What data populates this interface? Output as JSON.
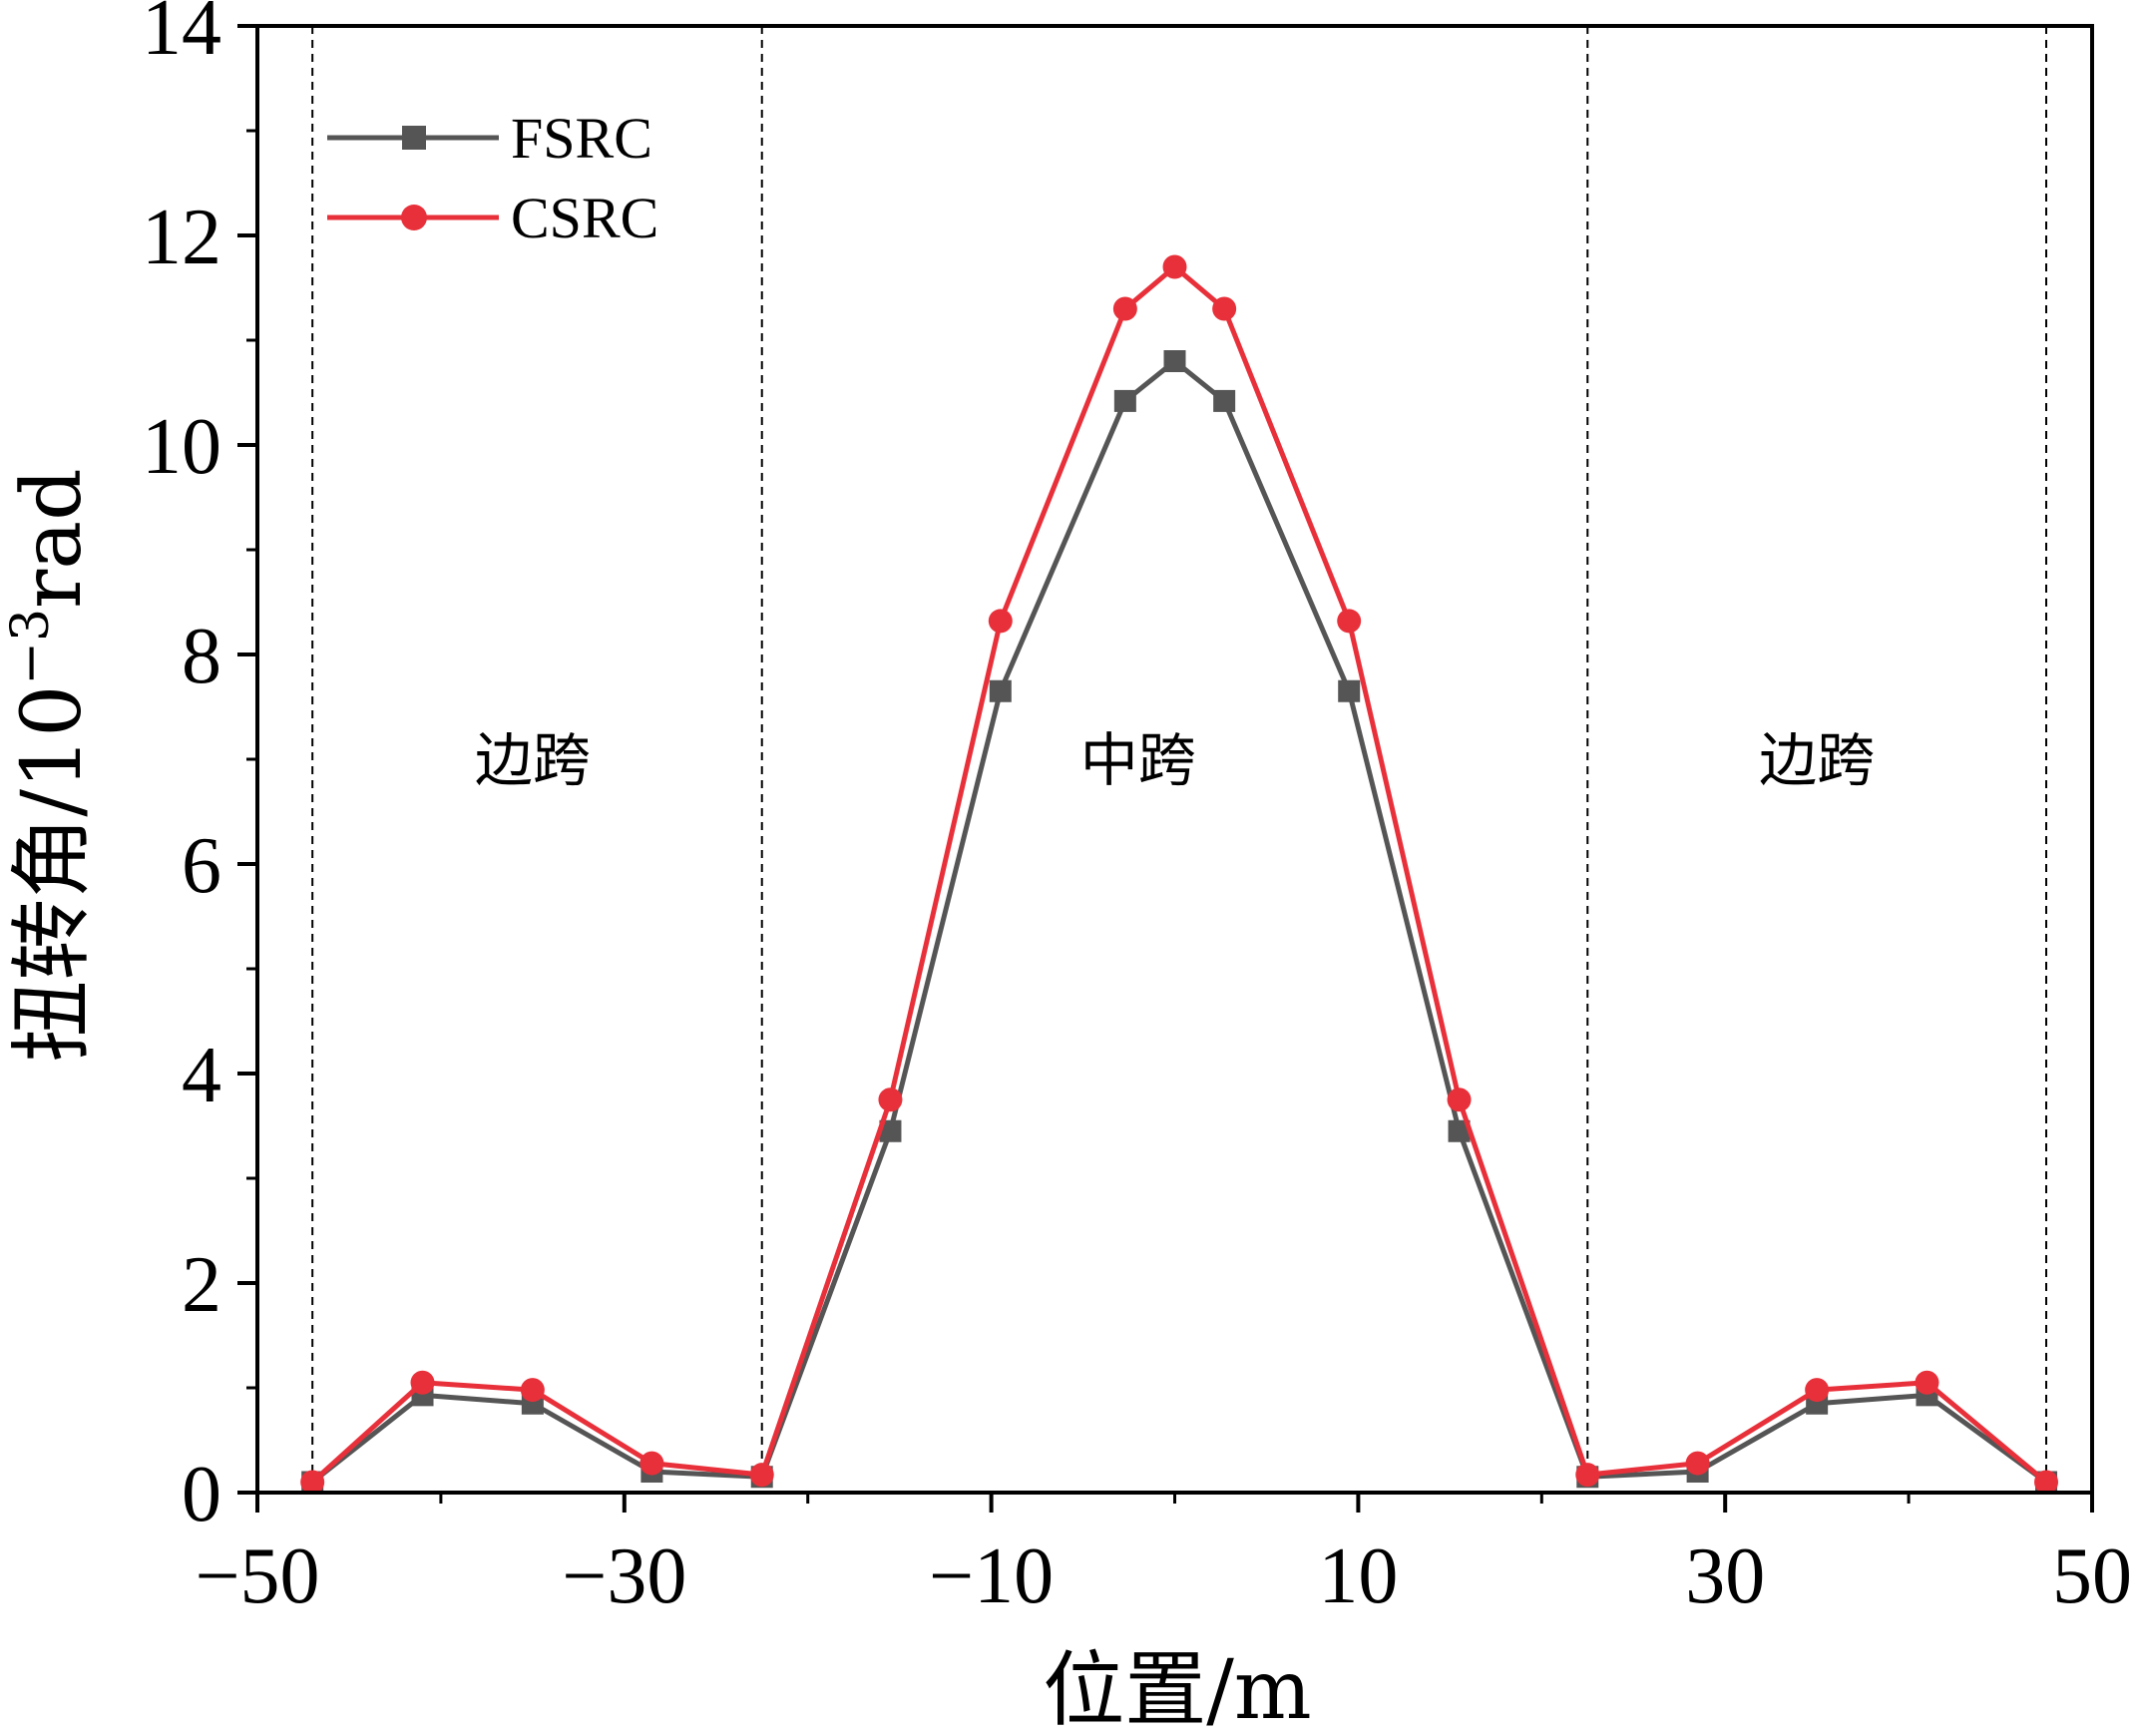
{
  "chart_data": {
    "type": "line",
    "title": "",
    "xlabel": "位置/m",
    "ylabel": {
      "main": "扭转角/10",
      "exponent": "−3",
      "unit": "rad"
    },
    "xlim": [
      -50,
      50
    ],
    "ylim": [
      0,
      14
    ],
    "x_ticks": [
      -50,
      -30,
      -10,
      10,
      30,
      50
    ],
    "x_tick_labels": [
      "−50",
      "−30",
      "−10",
      "10",
      "30",
      "50"
    ],
    "y_ticks": [
      0,
      2,
      4,
      6,
      8,
      10,
      12,
      14
    ],
    "y_tick_labels": [
      "0",
      "2",
      "4",
      "6",
      "8",
      "10",
      "12",
      "14"
    ],
    "grid": false,
    "legend_position": "top-left",
    "dividers_x": [
      -47,
      -22.5,
      22.5,
      47.5
    ],
    "regions": [
      {
        "label": "边跨",
        "x": -35,
        "y": 6.8
      },
      {
        "label": "中跨",
        "x": -2,
        "y": 6.8
      },
      {
        "label": "边跨",
        "x": 35,
        "y": 6.8
      }
    ],
    "series": [
      {
        "name": "FSRC",
        "color": "#555555",
        "marker": "square",
        "x": [
          -47,
          -41,
          -35,
          -28.5,
          -22.5,
          -15.5,
          -9.5,
          -2.7,
          0,
          2.7,
          9.5,
          15.5,
          22.5,
          28.5,
          35,
          41,
          47.5
        ],
        "y": [
          0.1,
          0.93,
          0.85,
          0.2,
          0.15,
          3.45,
          7.65,
          10.42,
          10.8,
          10.42,
          7.65,
          3.45,
          0.15,
          0.2,
          0.85,
          0.93,
          0.1
        ]
      },
      {
        "name": "CSRC",
        "color": "#e8303a",
        "marker": "circle",
        "x": [
          -47,
          -41,
          -35,
          -28.5,
          -22.5,
          -15.5,
          -9.5,
          -2.7,
          0,
          2.7,
          9.5,
          15.5,
          22.5,
          28.5,
          35,
          41,
          47.5
        ],
        "y": [
          0.1,
          1.05,
          0.98,
          0.28,
          0.17,
          3.75,
          8.32,
          11.3,
          11.7,
          11.3,
          8.32,
          3.75,
          0.17,
          0.28,
          0.98,
          1.05,
          0.1
        ]
      }
    ]
  }
}
